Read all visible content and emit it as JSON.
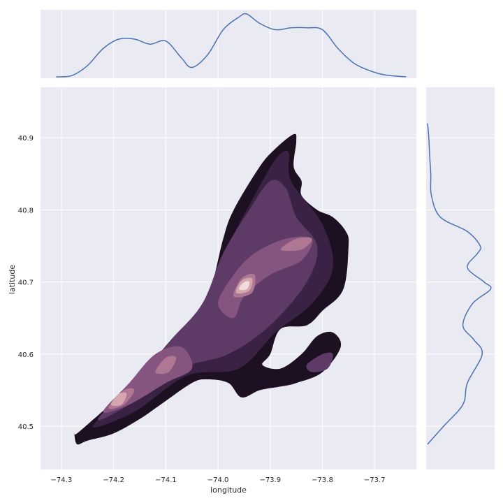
{
  "chart_data": {
    "type": "kde_joint",
    "style": {
      "panel_background": "#eaeaf2",
      "grid_color": "#ffffff",
      "marginal_line_color": "#4c72b0",
      "colormap": [
        "#1c1022",
        "#3a2245",
        "#5d3b66",
        "#86557f",
        "#b07794",
        "#d6a6ae",
        "#f0dcd8",
        "#faf2ef"
      ],
      "grid": true
    },
    "xlabel": "longitude",
    "ylabel": "latitude",
    "xlim": [
      -74.34,
      -73.62
    ],
    "ylim": [
      40.44,
      40.97
    ],
    "xticks": [
      -74.3,
      -74.2,
      -74.1,
      -74.0,
      -73.9,
      -73.8,
      -73.7
    ],
    "xtick_labels": [
      "−74.3",
      "−74.2",
      "−74.1",
      "−74.0",
      "−73.9",
      "−73.8",
      "−73.7"
    ],
    "yticks": [
      40.5,
      40.6,
      40.7,
      40.8,
      40.9
    ],
    "ytick_labels": [
      "40.5",
      "40.6",
      "40.7",
      "40.8",
      "40.9"
    ],
    "density_regions": [
      {
        "level": 0,
        "points": [
          [
            -74.27,
            40.49
          ],
          [
            -74.23,
            40.515
          ],
          [
            -74.19,
            40.54
          ],
          [
            -74.15,
            40.56
          ],
          [
            -74.07,
            40.61
          ],
          [
            -74.06,
            40.64
          ],
          [
            -74.03,
            40.66
          ],
          [
            -74.01,
            40.7
          ],
          [
            -73.99,
            40.76
          ],
          [
            -73.97,
            40.8
          ],
          [
            -73.92,
            40.86
          ],
          [
            -73.89,
            40.885
          ],
          [
            -73.855,
            40.905
          ],
          [
            -73.85,
            40.895
          ],
          [
            -73.855,
            40.86
          ],
          [
            -73.84,
            40.84
          ],
          [
            -73.84,
            40.82
          ],
          [
            -73.81,
            40.8
          ],
          [
            -73.78,
            40.79
          ],
          [
            -73.755,
            40.77
          ],
          [
            -73.75,
            40.75
          ],
          [
            -73.76,
            40.69
          ],
          [
            -73.8,
            40.66
          ],
          [
            -73.83,
            40.64
          ],
          [
            -73.88,
            40.635
          ],
          [
            -73.9,
            40.6
          ],
          [
            -73.915,
            40.585
          ],
          [
            -73.88,
            40.58
          ],
          [
            -73.84,
            40.6
          ],
          [
            -73.81,
            40.625
          ],
          [
            -73.78,
            40.63
          ],
          [
            -73.765,
            40.61
          ],
          [
            -73.8,
            40.575
          ],
          [
            -73.85,
            40.56
          ],
          [
            -73.88,
            40.555
          ],
          [
            -73.92,
            40.55
          ],
          [
            -73.955,
            40.54
          ],
          [
            -73.98,
            40.56
          ],
          [
            -74.02,
            40.565
          ],
          [
            -74.05,
            40.56
          ],
          [
            -74.11,
            40.53
          ],
          [
            -74.15,
            40.51
          ],
          [
            -74.2,
            40.49
          ],
          [
            -74.25,
            40.48
          ],
          [
            -74.27,
            40.475
          ],
          [
            -74.275,
            40.49
          ]
        ]
      },
      {
        "level": 1,
        "points": [
          [
            -74.24,
            40.5
          ],
          [
            -74.15,
            40.56
          ],
          [
            -74.08,
            40.61
          ],
          [
            -74.02,
            40.67
          ],
          [
            -73.98,
            40.75
          ],
          [
            -73.93,
            40.82
          ],
          [
            -73.89,
            40.87
          ],
          [
            -73.865,
            40.88
          ],
          [
            -73.86,
            40.84
          ],
          [
            -73.8,
            40.78
          ],
          [
            -73.78,
            40.72
          ],
          [
            -73.82,
            40.67
          ],
          [
            -73.89,
            40.63
          ],
          [
            -73.96,
            40.58
          ],
          [
            -74.06,
            40.57
          ],
          [
            -74.16,
            40.52
          ]
        ]
      },
      {
        "level": 2,
        "points": [
          [
            -74.23,
            40.51
          ],
          [
            -74.15,
            40.57
          ],
          [
            -74.09,
            40.62
          ],
          [
            -74.03,
            40.67
          ],
          [
            -73.99,
            40.74
          ],
          [
            -73.94,
            40.8
          ],
          [
            -73.9,
            40.84
          ],
          [
            -73.87,
            40.83
          ],
          [
            -73.85,
            40.79
          ],
          [
            -73.81,
            40.75
          ],
          [
            -73.83,
            40.7
          ],
          [
            -73.9,
            40.64
          ],
          [
            -73.98,
            40.6
          ],
          [
            -74.07,
            40.58
          ],
          [
            -74.17,
            40.53
          ]
        ]
      },
      {
        "level": 3,
        "points": [
          [
            -74.22,
            40.52
          ],
          [
            -74.17,
            40.56
          ],
          [
            -74.12,
            40.6
          ],
          [
            -74.07,
            40.61
          ],
          [
            -74.05,
            40.58
          ],
          [
            -74.1,
            40.56
          ],
          [
            -74.17,
            40.53
          ]
        ]
      },
      {
        "level": 3,
        "points": [
          [
            -74.0,
            40.67
          ],
          [
            -73.97,
            40.71
          ],
          [
            -73.93,
            40.74
          ],
          [
            -73.87,
            40.76
          ],
          [
            -73.82,
            40.76
          ],
          [
            -73.84,
            40.73
          ],
          [
            -73.9,
            40.71
          ],
          [
            -73.95,
            40.68
          ],
          [
            -73.97,
            40.65
          ]
        ]
      },
      {
        "level": 4,
        "points": [
          [
            -74.21,
            40.525
          ],
          [
            -74.18,
            40.55
          ],
          [
            -74.16,
            40.55
          ],
          [
            -74.18,
            40.53
          ]
        ]
      },
      {
        "level": 4,
        "points": [
          [
            -74.12,
            40.575
          ],
          [
            -74.1,
            40.595
          ],
          [
            -74.08,
            40.595
          ],
          [
            -74.095,
            40.575
          ]
        ]
      },
      {
        "level": 4,
        "points": [
          [
            -73.97,
            40.68
          ],
          [
            -73.955,
            40.705
          ],
          [
            -73.93,
            40.71
          ],
          [
            -73.935,
            40.685
          ]
        ]
      },
      {
        "level": 4,
        "points": [
          [
            -73.88,
            40.745
          ],
          [
            -73.85,
            40.76
          ],
          [
            -73.82,
            40.76
          ],
          [
            -73.84,
            40.745
          ]
        ]
      },
      {
        "level": 5,
        "points": [
          [
            -73.965,
            40.685
          ],
          [
            -73.955,
            40.702
          ],
          [
            -73.935,
            40.705
          ],
          [
            -73.94,
            40.688
          ]
        ]
      },
      {
        "level": 5,
        "points": [
          [
            -74.205,
            40.53
          ],
          [
            -74.19,
            40.545
          ],
          [
            -74.175,
            40.545
          ],
          [
            -74.185,
            40.53
          ]
        ]
      },
      {
        "level": 6,
        "points": [
          [
            -73.96,
            40.69
          ],
          [
            -73.95,
            40.7
          ],
          [
            -73.94,
            40.7
          ],
          [
            -73.945,
            40.69
          ]
        ]
      },
      {
        "level": 2,
        "points": [
          [
            -73.83,
            40.585
          ],
          [
            -73.8,
            40.6
          ],
          [
            -73.78,
            40.6
          ],
          [
            -73.79,
            40.58
          ],
          [
            -73.82,
            40.575
          ]
        ]
      }
    ],
    "marginal_x": {
      "x": [
        -74.31,
        -74.28,
        -74.25,
        -74.22,
        -74.19,
        -74.16,
        -74.13,
        -74.1,
        -74.07,
        -74.05,
        -74.02,
        -73.99,
        -73.96,
        -73.945,
        -73.92,
        -73.89,
        -73.86,
        -73.83,
        -73.8,
        -73.77,
        -73.74,
        -73.71,
        -73.68,
        -73.64
      ],
      "density": [
        0.0,
        0.02,
        0.18,
        0.45,
        0.6,
        0.6,
        0.52,
        0.57,
        0.3,
        0.15,
        0.35,
        0.75,
        0.95,
        1.0,
        0.85,
        0.75,
        0.78,
        0.78,
        0.75,
        0.45,
        0.22,
        0.1,
        0.03,
        0.0
      ]
    },
    "marginal_y": {
      "y": [
        40.475,
        40.5,
        40.53,
        40.56,
        40.6,
        40.62,
        40.64,
        40.67,
        40.69,
        40.7,
        40.72,
        40.74,
        40.75,
        40.77,
        40.79,
        40.82,
        40.85,
        40.88,
        40.9,
        40.92
      ],
      "density": [
        0.0,
        0.25,
        0.55,
        0.62,
        0.85,
        0.72,
        0.55,
        0.7,
        0.98,
        0.88,
        0.62,
        0.78,
        0.82,
        0.62,
        0.2,
        0.06,
        0.05,
        0.03,
        0.02,
        0.0
      ]
    }
  }
}
